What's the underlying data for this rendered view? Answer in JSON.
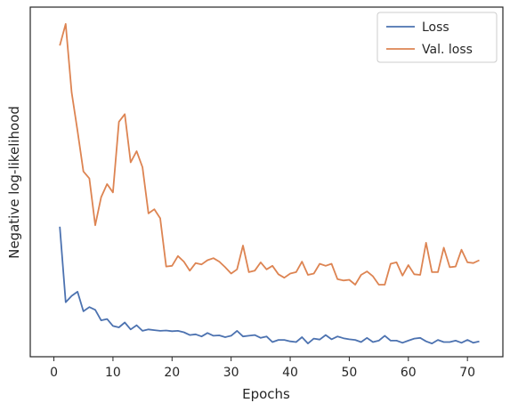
{
  "chart_data": {
    "type": "line",
    "title": "",
    "xlabel": "Epochs",
    "ylabel": "Negative log-likelihood",
    "xlim": [
      -4,
      76
    ],
    "ylim": [
      0,
      100
    ],
    "xticks": [
      "0",
      "10",
      "20",
      "30",
      "40",
      "50",
      "60",
      "70"
    ],
    "yticks_shown": false,
    "grid": false,
    "legend": "top-right",
    "x": [
      1,
      2,
      3,
      4,
      5,
      6,
      7,
      8,
      9,
      10,
      11,
      12,
      13,
      14,
      15,
      16,
      17,
      18,
      19,
      20,
      21,
      22,
      23,
      24,
      25,
      26,
      27,
      28,
      29,
      30,
      31,
      32,
      33,
      34,
      35,
      36,
      37,
      38,
      39,
      40,
      41,
      42,
      43,
      44,
      45,
      46,
      47,
      48,
      49,
      50,
      51,
      52,
      53,
      54,
      55,
      56,
      57,
      58,
      59,
      60,
      61,
      62,
      63,
      64,
      65,
      66,
      67,
      68,
      69,
      70,
      71,
      72
    ],
    "series": [
      {
        "name": "Loss",
        "color": "#4c72b0",
        "values": [
          37.2,
          15.6,
          17.4,
          18.6,
          13.0,
          14.2,
          13.4,
          10.4,
          10.8,
          8.8,
          8.4,
          9.8,
          7.8,
          9.0,
          7.4,
          7.8,
          7.6,
          7.4,
          7.5,
          7.3,
          7.4,
          7.0,
          6.2,
          6.4,
          5.8,
          6.8,
          6.0,
          6.1,
          5.6,
          6.0,
          7.4,
          5.8,
          6.0,
          6.2,
          5.4,
          5.8,
          4.2,
          4.8,
          4.8,
          4.4,
          4.2,
          5.6,
          3.8,
          5.2,
          4.9,
          6.2,
          5.0,
          5.8,
          5.3,
          5.0,
          4.8,
          4.2,
          5.4,
          4.2,
          4.6,
          6.0,
          4.6,
          4.6,
          4.0,
          4.6,
          5.2,
          5.4,
          4.4,
          3.8,
          4.8,
          4.2,
          4.2,
          4.6,
          4.0,
          4.8,
          4.0,
          4.4
        ]
      },
      {
        "name": "Val. loss",
        "color": "#dd8452",
        "values": [
          89.0,
          95.2,
          75.6,
          64.6,
          53.0,
          51.0,
          37.6,
          45.6,
          49.4,
          47.0,
          67.2,
          69.4,
          55.6,
          58.8,
          54.2,
          41.0,
          42.2,
          39.6,
          25.8,
          26.0,
          28.8,
          27.2,
          24.6,
          26.8,
          26.4,
          27.6,
          28.2,
          27.2,
          25.6,
          23.8,
          25.0,
          31.8,
          24.2,
          24.6,
          27.0,
          25.0,
          26.0,
          23.6,
          22.6,
          23.8,
          24.2,
          27.2,
          23.4,
          23.8,
          26.6,
          26.0,
          26.6,
          22.2,
          21.8,
          22.0,
          20.6,
          23.4,
          24.4,
          23.0,
          20.6,
          20.6,
          26.6,
          27.0,
          23.2,
          26.2,
          23.6,
          23.4,
          32.6,
          24.2,
          24.2,
          31.2,
          25.6,
          25.8,
          30.6,
          27.0,
          26.8,
          27.6
        ]
      }
    ]
  }
}
